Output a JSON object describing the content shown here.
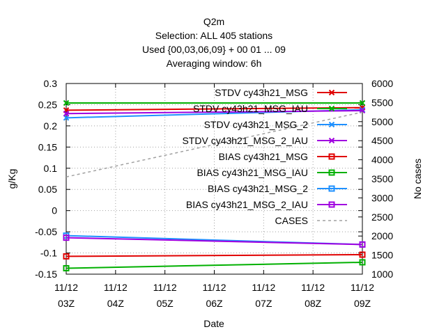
{
  "chart_data": {
    "type": "line",
    "title_lines": [
      "Q2m",
      "Selection: ALL    405 stations",
      "Used {00,03,06,09} + 00 01 ... 09",
      "Averaging window:  6h"
    ],
    "xlabel": "Date",
    "ylabel": "g/Kg",
    "y2label": "No cases",
    "categories": [
      [
        "11/12",
        "03Z"
      ],
      [
        "11/12",
        "04Z"
      ],
      [
        "11/12",
        "05Z"
      ],
      [
        "11/12",
        "06Z"
      ],
      [
        "11/12",
        "07Z"
      ],
      [
        "11/12",
        "08Z"
      ],
      [
        "11/12",
        "09Z"
      ]
    ],
    "ylim": [
      -0.15,
      0.3
    ],
    "yticks": [
      "0.3",
      "0.25",
      "0.2",
      "0.15",
      "0.1",
      "0.05",
      "0",
      "-0.05",
      "-0.1",
      "-0.15"
    ],
    "yticks_values": [
      0.3,
      0.25,
      0.2,
      0.15,
      0.1,
      0.05,
      0,
      -0.05,
      -0.1,
      -0.15
    ],
    "y2lim": [
      1000,
      6000
    ],
    "y2ticks": [
      "6000",
      "5500",
      "5000",
      "4500",
      "4000",
      "3500",
      "3000",
      "2500",
      "2000",
      "1500",
      "1000"
    ],
    "y2ticks_values": [
      6000,
      5500,
      5000,
      4500,
      4000,
      3500,
      3000,
      2500,
      2000,
      1500,
      1000
    ],
    "grid": true,
    "legend_position": "top-right",
    "series": [
      {
        "name": "STDV cy43h21_MSG",
        "color": "#e00000",
        "marker": "x",
        "axis": "y",
        "x": [
          0,
          6
        ],
        "values": [
          0.237,
          0.243
        ]
      },
      {
        "name": "STDV cy43h21_MSG_IAU",
        "color": "#00b000",
        "marker": "x",
        "axis": "y",
        "x": [
          0,
          6
        ],
        "values": [
          0.254,
          0.254
        ]
      },
      {
        "name": "STDV cy43h21_MSG_2",
        "color": "#1e90ff",
        "marker": "x",
        "axis": "y",
        "x": [
          0,
          6
        ],
        "values": [
          0.219,
          0.238
        ]
      },
      {
        "name": "STDV cy43h21_MSG_2_IAU",
        "color": "#a000e0",
        "marker": "x",
        "axis": "y",
        "x": [
          0,
          6
        ],
        "values": [
          0.229,
          0.236
        ]
      },
      {
        "name": "BIAS cy43h21_MSG",
        "color": "#e00000",
        "marker": "square",
        "axis": "y",
        "x": [
          0,
          6
        ],
        "values": [
          -0.108,
          -0.104
        ]
      },
      {
        "name": "BIAS cy43h21_MSG_IAU",
        "color": "#00b000",
        "marker": "square",
        "axis": "y",
        "x": [
          0,
          6
        ],
        "values": [
          -0.136,
          -0.122
        ]
      },
      {
        "name": "BIAS cy43h21_MSG_2",
        "color": "#1e90ff",
        "marker": "square",
        "axis": "y",
        "x": [
          0,
          6
        ],
        "values": [
          -0.059,
          -0.08
        ]
      },
      {
        "name": "BIAS cy43h21_MSG_2_IAU",
        "color": "#a000e0",
        "marker": "square",
        "axis": "y",
        "x": [
          0,
          6
        ],
        "values": [
          -0.064,
          -0.08
        ]
      },
      {
        "name": "CASES",
        "color": "#a0a0a0",
        "marker": "none",
        "dashed": true,
        "axis": "y2",
        "x": [
          0,
          6
        ],
        "values": [
          3550,
          5250
        ]
      }
    ]
  }
}
